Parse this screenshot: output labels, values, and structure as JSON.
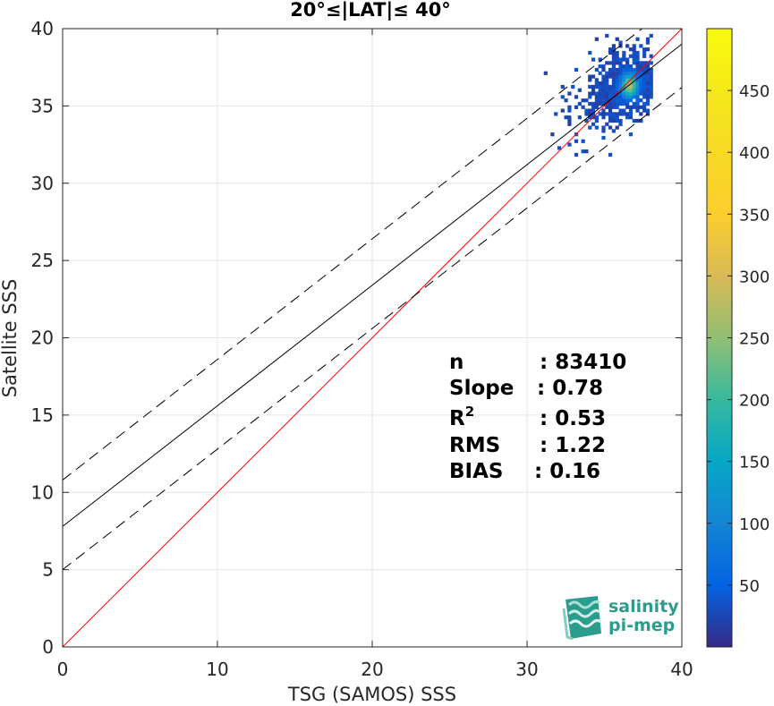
{
  "chart_data": {
    "type": "heatmap",
    "title": "20°≤|LAT|≤ 40°",
    "xlabel": "TSG (SAMOS) SSS",
    "ylabel": "Satellite SSS",
    "xlim": [
      0,
      40
    ],
    "ylim": [
      0,
      40
    ],
    "xticks": [
      "0",
      "10",
      "20",
      "30",
      "40"
    ],
    "yticks": [
      "0",
      "5",
      "10",
      "15",
      "20",
      "25",
      "30",
      "35",
      "40"
    ],
    "grid": true,
    "lines": [
      {
        "name": "one-to-one",
        "slope": 1.0,
        "intercept": 0.0,
        "style": "solid",
        "color": "#ff0000"
      },
      {
        "name": "regression",
        "slope": 0.78,
        "intercept": 7.8,
        "style": "solid",
        "color": "#000000"
      },
      {
        "name": "regression-upper",
        "slope": 0.78,
        "intercept": 10.8,
        "style": "dashed",
        "color": "#000000"
      },
      {
        "name": "regression-lower",
        "slope": 0.78,
        "intercept": 5.0,
        "style": "dashed",
        "color": "#000000"
      }
    ],
    "density_cloud": {
      "x_range": [
        28,
        38
      ],
      "y_range": [
        28,
        39.5
      ],
      "peak": [
        36.5,
        36.2
      ],
      "max_count": 500
    },
    "stats": [
      {
        "label": "n",
        "value": ": 83410"
      },
      {
        "label": "Slope",
        "value": ": 0.78"
      },
      {
        "label": "R",
        "sup": "2",
        "value": ": 0.53"
      },
      {
        "label": "RMS",
        "value": ": 1.22"
      },
      {
        "label": "BIAS",
        "value": ": 0.16"
      }
    ],
    "colorbar": {
      "min": 0,
      "max": 500,
      "ticks": [
        "50",
        "100",
        "150",
        "200",
        "250",
        "300",
        "350",
        "400",
        "450"
      ],
      "colormap": "parula"
    }
  },
  "logo": {
    "line1": "salinity",
    "line2": "pi-mep",
    "color": "#2a9d8f"
  }
}
